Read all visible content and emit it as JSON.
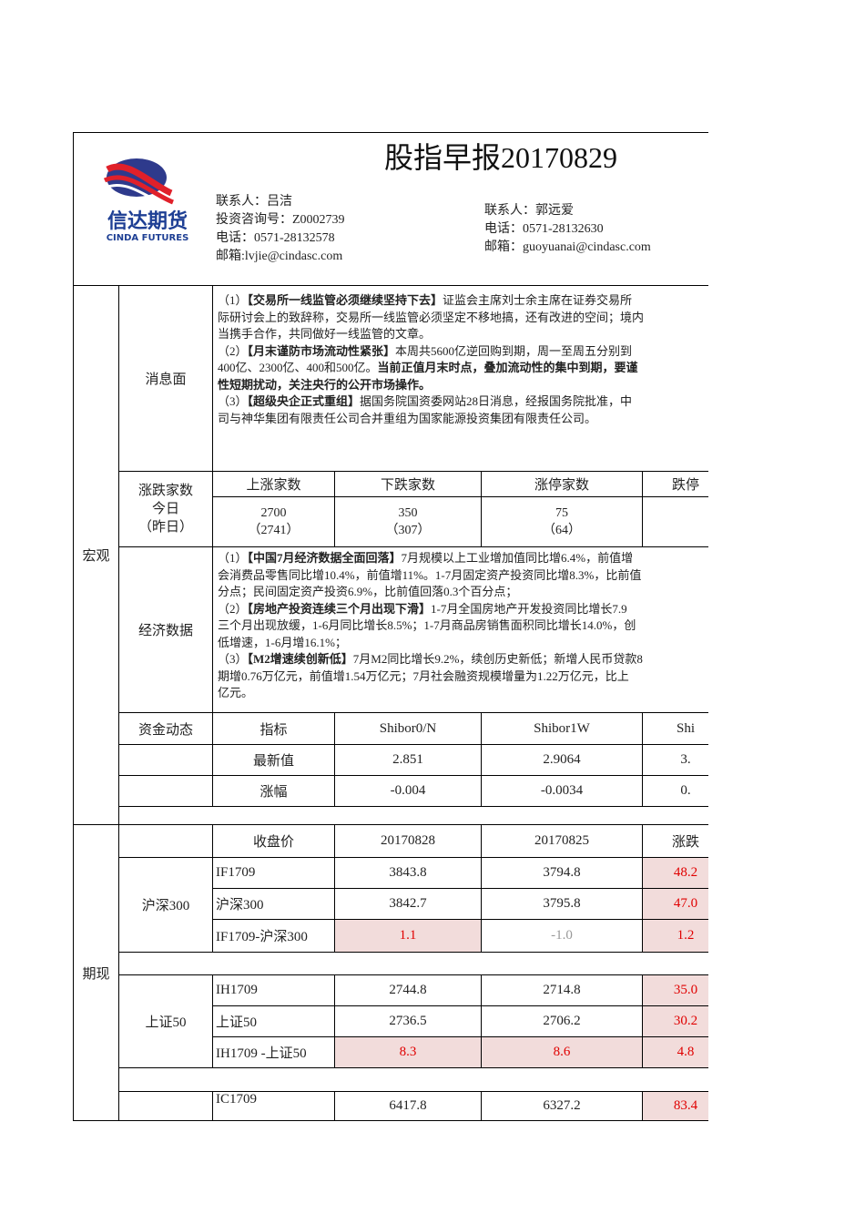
{
  "header": {
    "title": "股指早报20170829",
    "logo_cn": "信达期货",
    "logo_en": "CINDA FUTURES",
    "contact1": [
      "联系人：吕洁",
      "投资咨询号：Z0002739",
      "电话：0571-28132578",
      "邮箱:lvjie@cindasc.com"
    ],
    "contact2": [
      "联系人：郭远爱",
      "电话：0571-28132630",
      "邮箱：guoyuanai@cindasc.com"
    ]
  },
  "macro": {
    "label": "宏观",
    "news": {
      "label": "消息面",
      "lines": [
        [
          {
            "text": "（1）"
          },
          {
            "text": "【交易所一线监管必须继续坚持下去】",
            "bold": true
          },
          {
            "text": "证监会主席刘士余主席在证券交易所"
          }
        ],
        [
          {
            "text": "际研讨会上的致辞称，交易所一线监管必须坚定不移地搞，还有改进的空间；境内"
          }
        ],
        [
          {
            "text": "当携手合作，共同做好一线监管的文章。"
          }
        ],
        [
          {
            "text": "（2）"
          },
          {
            "text": "【月末谨防市场流动性紧张】",
            "bold": true
          },
          {
            "text": "本周共5600亿逆回购到期，周一至周五分别到"
          }
        ],
        [
          {
            "text": "400亿、2300亿、400和500亿。"
          },
          {
            "text": "当前正值月末时点，叠加流动性的集中到期，要谨",
            "bold": true
          }
        ],
        [
          {
            "text": "性短期扰动，关注央行的公开市场操作。",
            "bold": true
          }
        ],
        [
          {
            "text": "（3）"
          },
          {
            "text": "【超级央企正式重组】",
            "bold": true
          },
          {
            "text": "据国务院国资委网站28日消息，经报国务院批准，中"
          }
        ],
        [
          {
            "text": "司与神华集团有限责任公司合并重组为国家能源投资集团有限责任公司。"
          }
        ]
      ]
    },
    "breadth": {
      "label": [
        "涨跌家数",
        "今日",
        "（昨日）"
      ],
      "headers": [
        "上涨家数",
        "下跌家数",
        "涨停家数",
        "跌停"
      ],
      "today": [
        "2700",
        "350",
        "75"
      ],
      "yesterday": [
        "（2741）",
        "（307）",
        "（64）"
      ]
    },
    "economy": {
      "label": "经济数据",
      "lines": [
        [
          {
            "text": "（1）"
          },
          {
            "text": "【中国7月经济数据全面回落】",
            "bold": true
          },
          {
            "text": "7月规模以上工业增加值同比增6.4%，前值增"
          }
        ],
        [
          {
            "text": "会消费品零售同比增10.4%，前值增11%。1-7月固定资产投资同比增8.3%，比前值"
          }
        ],
        [
          {
            "text": "分点；民间固定资产投资6.9%，比前值回落0.3个百分点；"
          }
        ],
        [
          {
            "text": "（2）"
          },
          {
            "text": "【房地产投资连续三个月出现下滑】",
            "bold": true
          },
          {
            "text": "1-7月全国房地产开发投资同比增长7.9"
          }
        ],
        [
          {
            "text": "三个月出现放缓，1-6月同比增长8.5%；1-7月商品房销售面积同比增长14.0%，创"
          }
        ],
        [
          {
            "text": "低增速，1-6月增16.1%；"
          }
        ],
        [
          {
            "text": "（3）"
          },
          {
            "text": "【M2增速续创新低】",
            "bold": true
          },
          {
            "text": "7月M2同比增长9.2%，续创历史新低；新增人民币贷款8"
          }
        ],
        [
          {
            "text": "期增0.76万亿元，前值增1.54万亿元；7月社会融资规模增量为1.22万亿元，比上"
          }
        ],
        [
          {
            "text": "亿元。"
          }
        ]
      ]
    },
    "funds": {
      "label": "资金动态",
      "headers": [
        "指标",
        "Shibor0/N",
        "Shibor1W",
        "Shi"
      ],
      "rows": [
        [
          "最新值",
          "2.851",
          "2.9064",
          "3."
        ],
        [
          "涨幅",
          "-0.004",
          "-0.0034",
          "0."
        ]
      ]
    }
  },
  "futures": {
    "label": "期现",
    "header": [
      "收盘价",
      "20170828",
      "20170825",
      "涨跌"
    ],
    "groups": [
      {
        "label": "沪深300",
        "rows": [
          [
            "IF1709",
            "3843.8",
            "3794.8",
            {
              "text": "48.2",
              "style": "red"
            }
          ],
          [
            "沪深300",
            "3842.7",
            "3795.8",
            {
              "text": "47.0",
              "style": "red"
            }
          ],
          [
            "IF1709-沪深300",
            {
              "text": "1.1",
              "style": "red"
            },
            {
              "text": "-1.0",
              "style": "gray"
            },
            {
              "text": "1.2",
              "style": "red"
            }
          ]
        ]
      },
      {
        "label": "上证50",
        "rows": [
          [
            "IH1709",
            "2744.8",
            "2714.8",
            {
              "text": "35.0",
              "style": "red"
            }
          ],
          [
            "上证50",
            "2736.5",
            "2706.2",
            {
              "text": "30.2",
              "style": "red"
            }
          ],
          [
            "IH1709 -上证50",
            {
              "text": "8.3",
              "style": "red"
            },
            {
              "text": "8.6",
              "style": "red"
            },
            {
              "text": "4.8",
              "style": "red"
            }
          ]
        ]
      },
      {
        "rows": [
          [
            "IC1709",
            "6417.8",
            "6327.2",
            {
              "text": "83.4",
              "style": "red"
            }
          ]
        ]
      }
    ]
  }
}
